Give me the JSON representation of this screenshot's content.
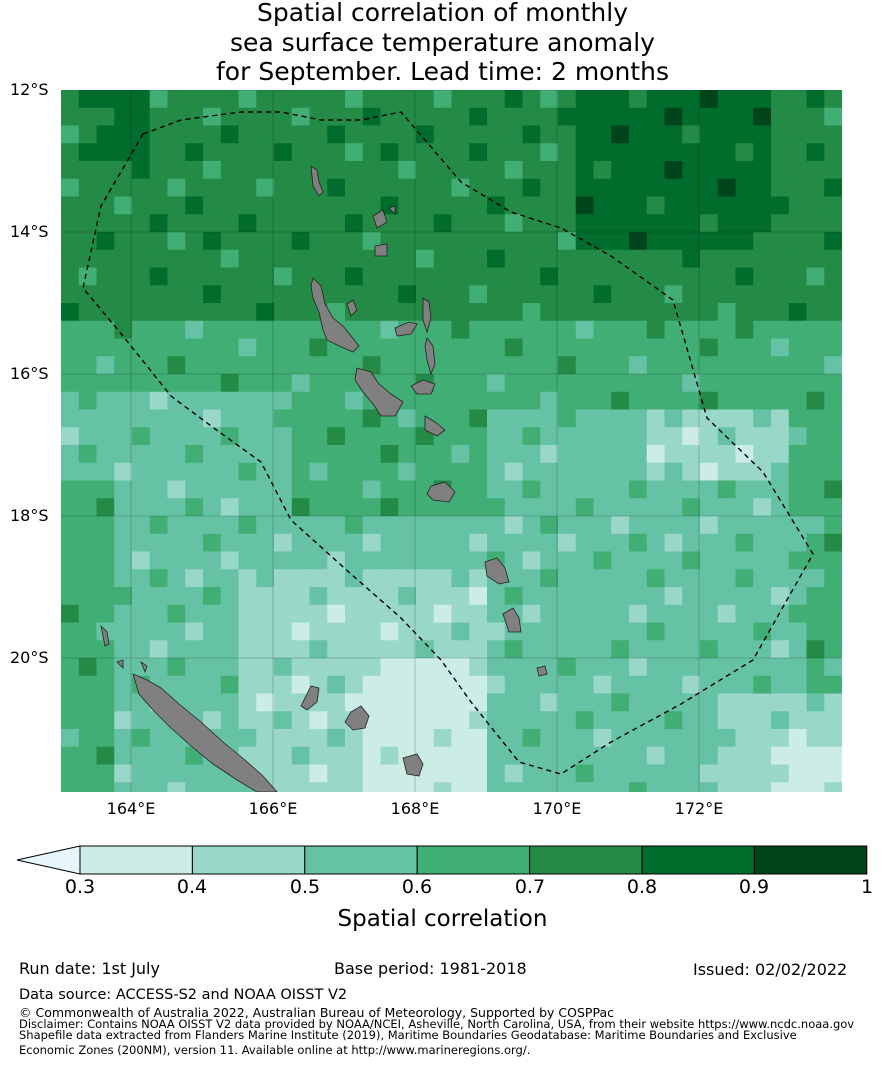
{
  "title_lines": [
    "Spatial correlation of monthly",
    "sea surface temperature anomaly",
    "for September. Lead time: 2 months"
  ],
  "map": {
    "lat_labels": [
      "12°S",
      "14°S",
      "16°S",
      "18°S",
      "20°S"
    ],
    "lon_labels": [
      "164°E",
      "166°E",
      "168°E",
      "170°E",
      "172°E"
    ],
    "land_color": "#808080",
    "eez_line": "dashed black",
    "grid": true
  },
  "colorbar": {
    "title": "Spatial correlation",
    "ticks": [
      "0.3",
      "0.4",
      "0.5",
      "0.6",
      "0.7",
      "0.8",
      "0.9",
      "1"
    ],
    "colors": [
      "#e5f5f9",
      "#ccece6",
      "#99d8c9",
      "#66c2a4",
      "#41ae76",
      "#238b45",
      "#006d2c",
      "#00441b"
    ],
    "extend": "min"
  },
  "footer": {
    "run_date": "Run date: 1st July",
    "base_period": "Base period: 1981-2018",
    "issued": "Issued: 02/02/2022",
    "data_source": "Data source: ACCESS-S2 and NOAA OISST V2",
    "copyright": "© Commonwealth of Australia 2022, Australian Bureau of Meteorology, Supported by COSPPac",
    "disclaimer_1": "Disclaimer: Contains NOAA OISST V2 data provided by NOAA/NCEI, Asheville, North Carolina, USA, from their website https://www.ncdc.noaa.gov",
    "disclaimer_2": "Shapefile data extracted from Flanders Marine Institute (2019), Maritime Boundaries Geodatabase: Maritime Boundaries and Exclusive",
    "disclaimer_3": "Economic Zones (200NM), version 11. Available online at http://www.marineregions.org/."
  }
}
